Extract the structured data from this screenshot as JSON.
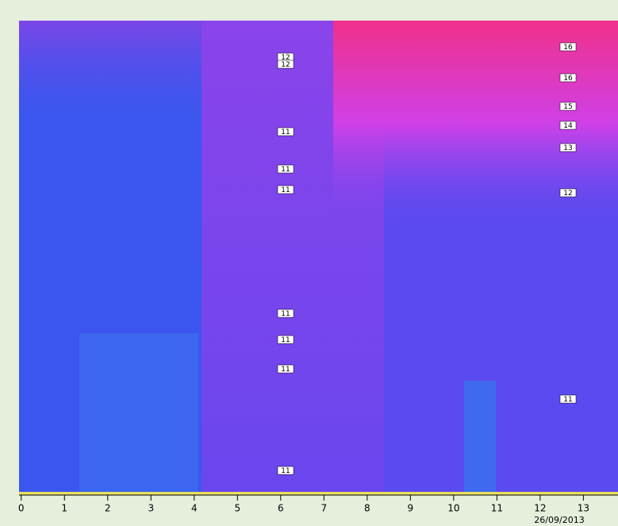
{
  "chart_data": {
    "type": "heatmap",
    "xlim": [
      -0.05,
      13.8
    ],
    "xticks": [
      0,
      1,
      2,
      3,
      4,
      5,
      6,
      7,
      8,
      9,
      10,
      11,
      12,
      13
    ],
    "date_label": "26/09/2013",
    "left_labels": [
      "12",
      "12",
      "11",
      "11",
      "11",
      "11",
      "11",
      "11",
      "11"
    ],
    "right_labels": [
      "16",
      "16",
      "15",
      "14",
      "13",
      "12",
      "11"
    ]
  }
}
